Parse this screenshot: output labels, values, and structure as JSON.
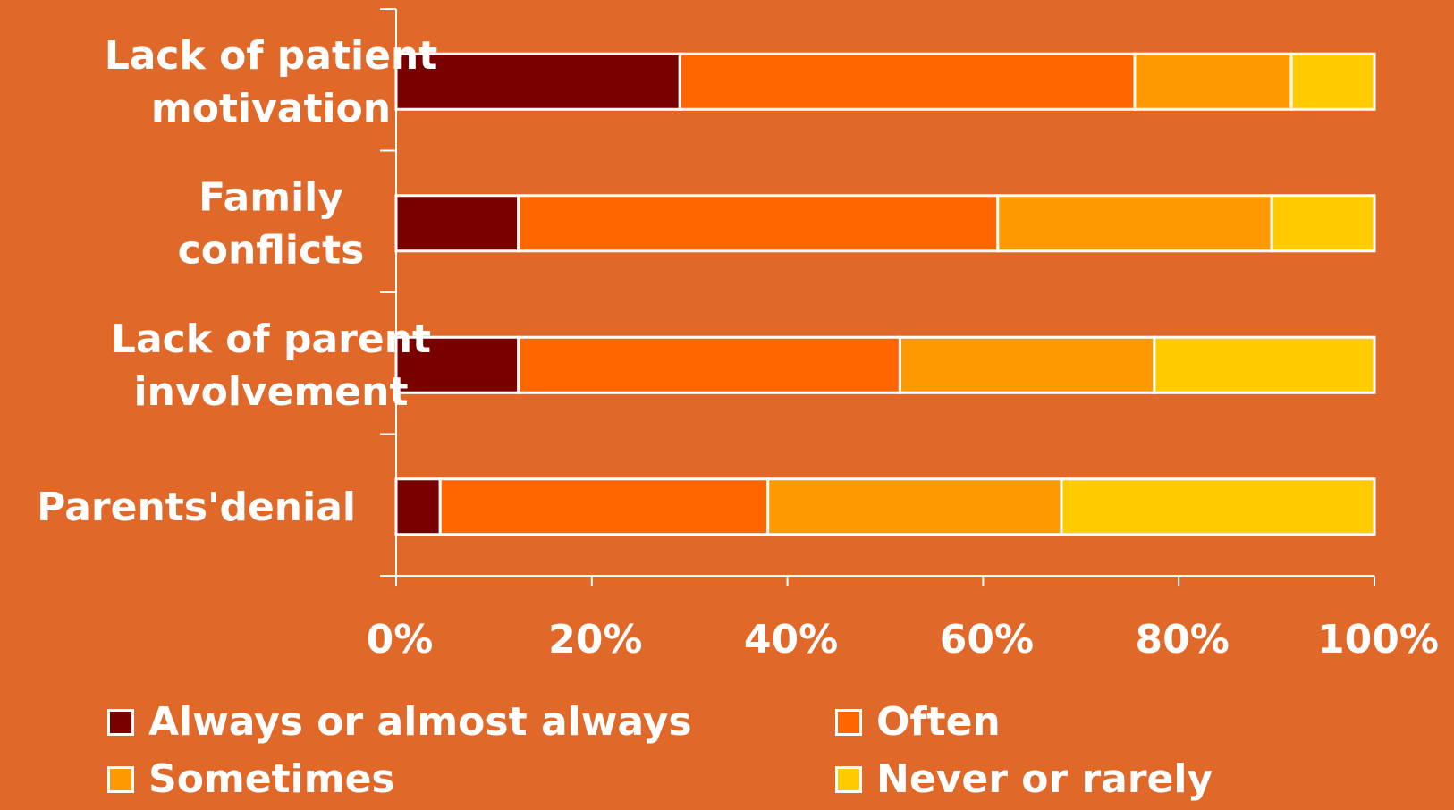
{
  "chart_data": {
    "type": "bar",
    "orientation": "horizontal",
    "stacked": true,
    "categories": [
      "Lack of patient motivation",
      "Family conflicts",
      "Lack of parent involvement",
      "Parents'denial"
    ],
    "category_label_lines": [
      [
        "Lack of patient",
        "motivation"
      ],
      [
        "Family",
        "conflicts"
      ],
      [
        "Lack of parent",
        "involvement"
      ],
      [
        "Parents'denial"
      ]
    ],
    "series": [
      {
        "name": "Always or almost always",
        "color": "#7a0000",
        "values": [
          29,
          12.5,
          12.5,
          4.5
        ]
      },
      {
        "name": "Often",
        "color": "#ff6600",
        "values": [
          46.5,
          49,
          39,
          33.5
        ]
      },
      {
        "name": "Sometimes",
        "color": "#ff9900",
        "values": [
          16,
          28,
          26,
          30
        ]
      },
      {
        "name": "Never or rarely",
        "color": "#ffcc00",
        "values": [
          8.5,
          10.5,
          22.5,
          32
        ]
      }
    ],
    "xlim": [
      0,
      100
    ],
    "x_ticks": [
      "0%",
      "20%",
      "40%",
      "60%",
      "80%",
      "100%"
    ],
    "grid": false,
    "legend_position": "bottom",
    "title": "",
    "xlabel": "",
    "ylabel": ""
  }
}
